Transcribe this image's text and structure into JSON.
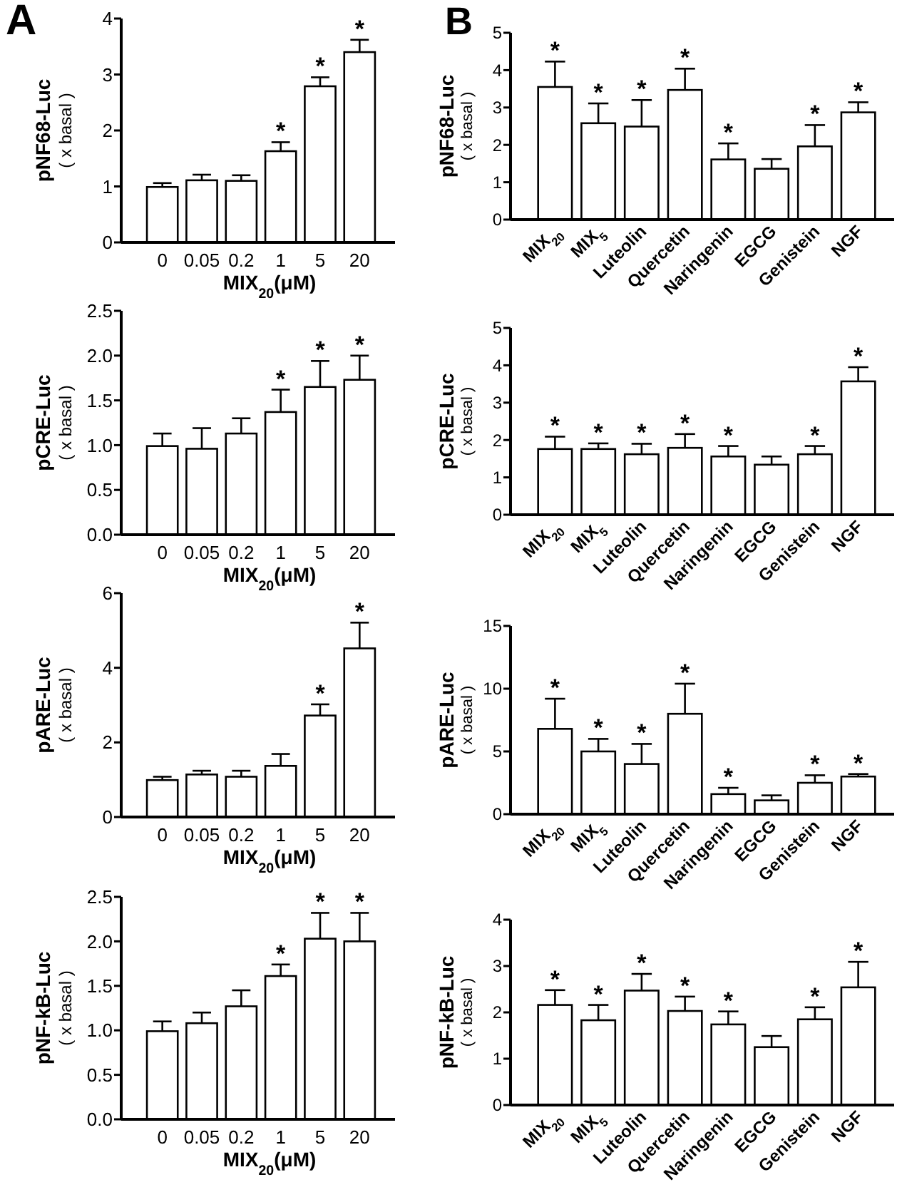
{
  "chart_data": [
    {
      "type": "bar",
      "ylabel": "pNF68-Luc\n( x basal )",
      "xlabel": "MIX$_{20}$(μM)",
      "categories": [
        "0",
        "0.05",
        "0.2",
        "1",
        "5",
        "20"
      ],
      "color": "#ffffff",
      "values": [
        0.99,
        1.11,
        1.1,
        1.63,
        2.79,
        3.4
      ],
      "errors": [
        [
          0.99,
          1.06
        ],
        [
          1.11,
          1.21
        ],
        [
          1.1,
          1.2
        ],
        [
          1.63,
          1.79
        ],
        [
          2.79,
          2.95
        ],
        [
          3.4,
          3.62
        ]
      ],
      "ylim": [
        0,
        4
      ],
      "yticks": [
        0,
        1,
        2,
        3,
        4
      ],
      "annotations": [
        "A",
        {
          "text": "*",
          "x": "1",
          "y": 1.79
        },
        {
          "text": "*",
          "x": "5",
          "y": 2.95
        },
        {
          "text": "*",
          "x": "20",
          "y": 3.62
        }
      ]
    },
    {
      "type": "bar",
      "ylabel": "pCRE-Luc\n( x basal )",
      "xlabel": "MIX$_{20}$(μM)",
      "categories": [
        "0",
        "0.05",
        "0.2",
        "1",
        "5",
        "20"
      ],
      "color": "#ffffff",
      "values": [
        0.99,
        0.96,
        1.13,
        1.37,
        1.65,
        1.73
      ],
      "errors": [
        [
          0.99,
          1.13
        ],
        [
          0.96,
          1.19
        ],
        [
          1.13,
          1.3
        ],
        [
          1.37,
          1.62
        ],
        [
          1.65,
          1.94
        ],
        [
          1.73,
          2.0
        ]
      ],
      "ylim": [
        0,
        2.5
      ],
      "yticks": [
        {
          "value": 0,
          "label": "0.0"
        },
        {
          "value": 0.5,
          "label": "0.5"
        },
        {
          "value": 1,
          "label": "1.0"
        },
        {
          "value": 1.5,
          "label": "1.5"
        },
        {
          "value": 2,
          "label": "2.0"
        },
        {
          "value": 2.5,
          "label": "2.5"
        }
      ],
      "annotations": [
        {
          "text": "*",
          "x": "1",
          "y": 1.62
        },
        {
          "text": "*",
          "x": "5",
          "y": 1.94
        },
        {
          "text": "*",
          "x": "20",
          "y": 2.0
        }
      ]
    },
    {
      "type": "bar",
      "ylabel": "pARE-Luc\n( x basal )",
      "xlabel": "MIX$_{20}$(μM)",
      "categories": [
        "0",
        "0.05",
        "0.2",
        "1",
        "5",
        "20"
      ],
      "color": "#ffffff",
      "values": [
        0.99,
        1.14,
        1.08,
        1.37,
        2.72,
        4.52
      ],
      "errors": [
        [
          0.99,
          1.08
        ],
        [
          1.14,
          1.24
        ],
        [
          1.08,
          1.24
        ],
        [
          1.37,
          1.69
        ],
        [
          2.72,
          3.02
        ],
        [
          4.52,
          5.21
        ]
      ],
      "ylim": [
        0,
        6
      ],
      "yticks": [
        0,
        2,
        4,
        6
      ],
      "annotations": [
        {
          "text": "*",
          "x": "5",
          "y": 3.02
        },
        {
          "text": "*",
          "x": "20",
          "y": 5.21
        }
      ]
    },
    {
      "type": "bar",
      "ylabel": "pNF-kB-Luc\n( x basal )",
      "xlabel": "MIX$_{20}$(μM)",
      "categories": [
        "0",
        "0.05",
        "0.2",
        "1",
        "5",
        "20"
      ],
      "color": "#ffffff",
      "values": [
        0.99,
        1.08,
        1.27,
        1.61,
        2.03,
        2.0
      ],
      "errors": [
        [
          0.99,
          1.1
        ],
        [
          1.08,
          1.2
        ],
        [
          1.27,
          1.45
        ],
        [
          1.61,
          1.74
        ],
        [
          2.03,
          2.32
        ],
        [
          2.0,
          2.32
        ]
      ],
      "ylim": [
        0,
        2.5
      ],
      "yticks": [
        {
          "value": 0,
          "label": "0.0"
        },
        {
          "value": 0.5,
          "label": "0.5"
        },
        {
          "value": 1,
          "label": "1.0"
        },
        {
          "value": 1.5,
          "label": "1.5"
        },
        {
          "value": 2,
          "label": "2.0"
        },
        {
          "value": 2.5,
          "label": "2.5"
        }
      ],
      "annotations": [
        {
          "text": "*",
          "x": "1",
          "y": 1.74
        },
        {
          "text": "*",
          "x": "5",
          "y": 2.32
        },
        {
          "text": "*",
          "x": "20",
          "y": 2.32
        }
      ]
    },
    {
      "type": "bar",
      "ylabel": "pNF68-Luc\n( x basal )",
      "categories": [
        "MIX$_{20}$",
        "MIX$_{5}$",
        "Luteolin",
        "Quercetin",
        "Naringenin",
        "EGCG",
        "Genistein",
        "NGF"
      ],
      "color": "#ffffff",
      "values": [
        3.55,
        2.58,
        2.49,
        3.47,
        1.61,
        1.36,
        1.96,
        2.87
      ],
      "errors": [
        [
          3.55,
          4.23
        ],
        [
          2.58,
          3.11
        ],
        [
          2.49,
          3.2
        ],
        [
          3.47,
          4.04
        ],
        [
          1.61,
          2.04
        ],
        [
          1.36,
          1.62
        ],
        [
          1.96,
          2.53
        ],
        [
          2.87,
          3.14
        ]
      ],
      "ylim": [
        0,
        5
      ],
      "yticks": [
        0,
        1,
        2,
        3,
        4,
        5
      ],
      "annotations": [
        "B",
        {
          "text": "*",
          "x": "MIX$_{20}$",
          "y": 4.23
        },
        {
          "text": "*",
          "x": "MIX$_{5}$",
          "y": 3.11
        },
        {
          "text": "*",
          "x": "Luteolin",
          "y": 3.2
        },
        {
          "text": "*",
          "x": "Quercetin",
          "y": 4.04
        },
        {
          "text": "*",
          "x": "Naringenin",
          "y": 2.04
        },
        {
          "text": "*",
          "x": "Genistein",
          "y": 2.53
        },
        {
          "text": "*",
          "x": "NGF",
          "y": 3.14
        }
      ]
    },
    {
      "type": "bar",
      "ylabel": "pCRE-Luc\n( x basal )",
      "categories": [
        "MIX$_{20}$",
        "MIX$_{5}$",
        "Luteolin",
        "Quercetin",
        "Naringenin",
        "EGCG",
        "Genistein",
        "NGF"
      ],
      "color": "#ffffff",
      "values": [
        1.76,
        1.76,
        1.62,
        1.79,
        1.56,
        1.34,
        1.62,
        3.57
      ],
      "errors": [
        [
          1.76,
          2.09
        ],
        [
          1.76,
          1.91
        ],
        [
          1.62,
          1.9
        ],
        [
          1.79,
          2.16
        ],
        [
          1.56,
          1.84
        ],
        [
          1.34,
          1.56
        ],
        [
          1.62,
          1.84
        ],
        [
          3.57,
          3.95
        ]
      ],
      "ylim": [
        0,
        5
      ],
      "yticks": [
        0,
        1,
        2,
        3,
        4,
        5
      ],
      "annotations": [
        {
          "text": "*",
          "x": "MIX$_{20}$",
          "y": 2.09
        },
        {
          "text": "*",
          "x": "MIX$_{5}$",
          "y": 1.91
        },
        {
          "text": "*",
          "x": "Luteolin",
          "y": 1.9
        },
        {
          "text": "*",
          "x": "Quercetin",
          "y": 2.16
        },
        {
          "text": "*",
          "x": "Naringenin",
          "y": 1.84
        },
        {
          "text": "*",
          "x": "Genistein",
          "y": 1.84
        },
        {
          "text": "*",
          "x": "NGF",
          "y": 3.95
        }
      ]
    },
    {
      "type": "bar",
      "ylabel": "pARE-Luc\n( x basal )",
      "categories": [
        "MIX$_{20}$",
        "MIX$_{5}$",
        "Luteolin",
        "Quercetin",
        "Naringenin",
        "EGCG",
        "Genistein",
        "NGF"
      ],
      "color": "#ffffff",
      "values": [
        6.8,
        5.0,
        4.0,
        8.0,
        1.6,
        1.1,
        2.5,
        3.0
      ],
      "errors": [
        [
          6.8,
          9.2
        ],
        [
          5.0,
          6.0
        ],
        [
          4.0,
          5.6
        ],
        [
          8.0,
          10.4
        ],
        [
          1.6,
          2.1
        ],
        [
          1.1,
          1.5
        ],
        [
          2.5,
          3.1
        ],
        [
          3.0,
          3.2
        ]
      ],
      "ylim": [
        0,
        15
      ],
      "yticks": [
        0,
        5,
        10,
        15
      ],
      "annotations": [
        {
          "text": "*",
          "x": "MIX$_{20}$",
          "y": 9.2
        },
        {
          "text": "*",
          "x": "MIX$_{5}$",
          "y": 6.0
        },
        {
          "text": "*",
          "x": "Luteolin",
          "y": 5.6
        },
        {
          "text": "*",
          "x": "Quercetin",
          "y": 10.4
        },
        {
          "text": "*",
          "x": "Naringenin",
          "y": 2.1
        },
        {
          "text": "*",
          "x": "Genistein",
          "y": 3.1
        },
        {
          "text": "*",
          "x": "NGF",
          "y": 3.2
        }
      ]
    },
    {
      "type": "bar",
      "ylabel": "pNF-kB-Luc\n( x basal )",
      "categories": [
        "MIX$_{20}$",
        "MIX$_{5}$",
        "Luteolin",
        "Quercetin",
        "Naringenin",
        "EGCG",
        "Genistein",
        "NGF"
      ],
      "color": "#ffffff",
      "values": [
        2.16,
        1.83,
        2.47,
        2.03,
        1.74,
        1.25,
        1.85,
        2.54
      ],
      "errors": [
        [
          2.16,
          2.48
        ],
        [
          1.83,
          2.16
        ],
        [
          2.47,
          2.83
        ],
        [
          2.03,
          2.34
        ],
        [
          1.74,
          2.02
        ],
        [
          1.25,
          1.49
        ],
        [
          1.85,
          2.11
        ],
        [
          2.54,
          3.09
        ]
      ],
      "ylim": [
        0,
        4
      ],
      "yticks": [
        0,
        1,
        2,
        3,
        4
      ],
      "annotations": [
        {
          "text": "*",
          "x": "MIX$_{20}$",
          "y": 2.48
        },
        {
          "text": "*",
          "x": "MIX$_{5}$",
          "y": 2.16
        },
        {
          "text": "*",
          "x": "Luteolin",
          "y": 2.83
        },
        {
          "text": "*",
          "x": "Quercetin",
          "y": 2.34
        },
        {
          "text": "*",
          "x": "Naringenin",
          "y": 2.02
        },
        {
          "text": "*",
          "x": "Genistein",
          "y": 2.11
        },
        {
          "text": "*",
          "x": "NGF",
          "y": 3.09
        }
      ]
    }
  ]
}
